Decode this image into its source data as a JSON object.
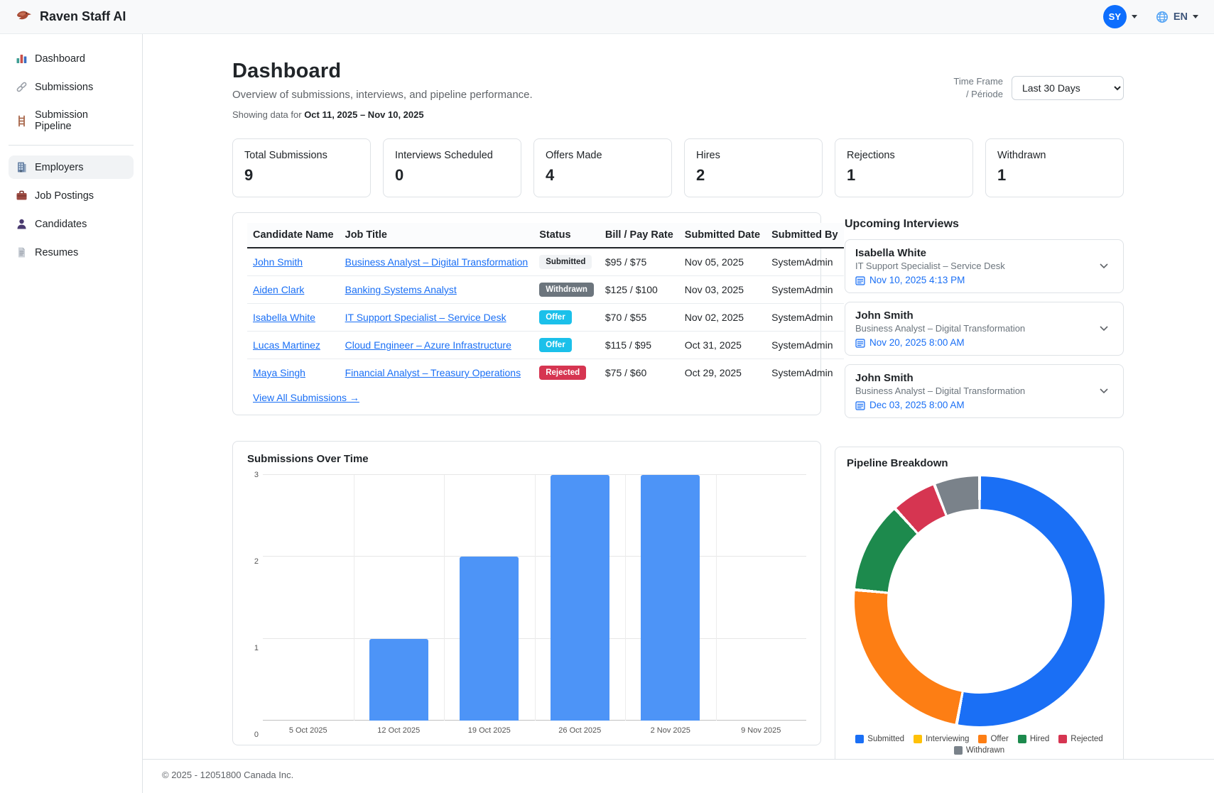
{
  "app": {
    "title": "Raven Staff AI"
  },
  "header": {
    "avatar_initials": "SY",
    "language": "EN"
  },
  "sidebar": {
    "items": [
      {
        "label": "Dashboard",
        "icon": "dashboard-icon",
        "active": false
      },
      {
        "label": "Submissions",
        "icon": "link-icon",
        "active": false
      },
      {
        "label": "Submission Pipeline",
        "icon": "ladder-icon",
        "active": false
      },
      {
        "label": "Employers",
        "icon": "building-icon",
        "active": true
      },
      {
        "label": "Job Postings",
        "icon": "briefcase-icon",
        "active": false
      },
      {
        "label": "Candidates",
        "icon": "person-icon",
        "active": false
      },
      {
        "label": "Resumes",
        "icon": "document-icon",
        "active": false
      }
    ]
  },
  "page": {
    "title": "Dashboard",
    "subtitle": "Overview of submissions, interviews, and pipeline performance.",
    "showing_prefix": "Showing data for ",
    "date_range": "Oct 11, 2025 – Nov 10, 2025",
    "timeframe_label_line1": "Time Frame",
    "timeframe_label_line2": "/ Période",
    "timeframe_value": "Last 30 Days"
  },
  "stats": [
    {
      "label": "Total Submissions",
      "value": "9"
    },
    {
      "label": "Interviews Scheduled",
      "value": "0"
    },
    {
      "label": "Offers Made",
      "value": "4"
    },
    {
      "label": "Hires",
      "value": "2"
    },
    {
      "label": "Rejections",
      "value": "1"
    },
    {
      "label": "Withdrawn",
      "value": "1"
    }
  ],
  "submissions_table": {
    "columns": [
      "Candidate Name",
      "Job Title",
      "Status",
      "Bill / Pay Rate",
      "Submitted Date",
      "Submitted By"
    ],
    "rows": [
      {
        "candidate": "John Smith",
        "job_title": "Business Analyst – Digital Transformation",
        "status": "Submitted",
        "rate": "$95 / $75",
        "date": "Nov 05, 2025",
        "by": "SystemAdmin"
      },
      {
        "candidate": "Aiden Clark",
        "job_title": "Banking Systems Analyst",
        "status": "Withdrawn",
        "rate": "$125 / $100",
        "date": "Nov 03, 2025",
        "by": "SystemAdmin"
      },
      {
        "candidate": "Isabella White",
        "job_title": "IT Support Specialist – Service Desk",
        "status": "Offer",
        "rate": "$70 / $55",
        "date": "Nov 02, 2025",
        "by": "SystemAdmin"
      },
      {
        "candidate": "Lucas Martinez",
        "job_title": "Cloud Engineer – Azure Infrastructure",
        "status": "Offer",
        "rate": "$115 / $95",
        "date": "Oct 31, 2025",
        "by": "SystemAdmin"
      },
      {
        "candidate": "Maya Singh",
        "job_title": "Financial Analyst – Treasury Operations",
        "status": "Rejected",
        "rate": "$75 / $60",
        "date": "Oct 29, 2025",
        "by": "SystemAdmin"
      }
    ],
    "view_all": "View All Submissions →"
  },
  "upcoming_interviews": {
    "title": "Upcoming Interviews",
    "items": [
      {
        "name": "Isabella White",
        "role": "IT Support Specialist – Service Desk",
        "datetime": "Nov 10, 2025 4:13 PM"
      },
      {
        "name": "John Smith",
        "role": "Business Analyst – Digital Transformation",
        "datetime": "Nov 20, 2025 8:00 AM"
      },
      {
        "name": "John Smith",
        "role": "Business Analyst – Digital Transformation",
        "datetime": "Dec 03, 2025 8:00 AM"
      }
    ]
  },
  "colors": {
    "accent": "#0d6efd",
    "link": "#1a6ff5",
    "status": {
      "Submitted": {
        "bg": "#f1f3f5",
        "fg": "#212529"
      },
      "Withdrawn": {
        "bg": "#6c757d",
        "fg": "#ffffff"
      },
      "Offer": {
        "bg": "#1bc0ea",
        "fg": "#ffffff"
      },
      "Rejected": {
        "bg": "#d63551",
        "fg": "#ffffff"
      }
    }
  },
  "chart_data": [
    {
      "type": "bar",
      "title": "Submissions Over Time",
      "categories": [
        "5 Oct 2025",
        "12 Oct 2025",
        "19 Oct 2025",
        "26 Oct 2025",
        "2 Nov 2025",
        "9 Nov 2025"
      ],
      "values": [
        0,
        1,
        2,
        3,
        3,
        0
      ],
      "xlabel": "",
      "ylabel": "",
      "ylim": [
        0,
        3
      ],
      "yticks": [
        0,
        1,
        2,
        3
      ],
      "grid": true,
      "bar_color": "#4d94f7"
    },
    {
      "type": "pie",
      "title": "Pipeline Breakdown",
      "subtype": "donut",
      "legend_position": "bottom",
      "segments": [
        {
          "label": "Submitted",
          "value": 9,
          "color": "#1a6ff5"
        },
        {
          "label": "Interviewing",
          "value": 0,
          "color": "#ffc107"
        },
        {
          "label": "Offer",
          "value": 4,
          "color": "#fd7e14"
        },
        {
          "label": "Hired",
          "value": 2,
          "color": "#1d8a4d"
        },
        {
          "label": "Rejected",
          "value": 1,
          "color": "#d63551"
        },
        {
          "label": "Withdrawn",
          "value": 1,
          "color": "#7a828a"
        }
      ]
    }
  ],
  "footer": {
    "copyright": "© 2025 - 12051800 Canada Inc."
  }
}
